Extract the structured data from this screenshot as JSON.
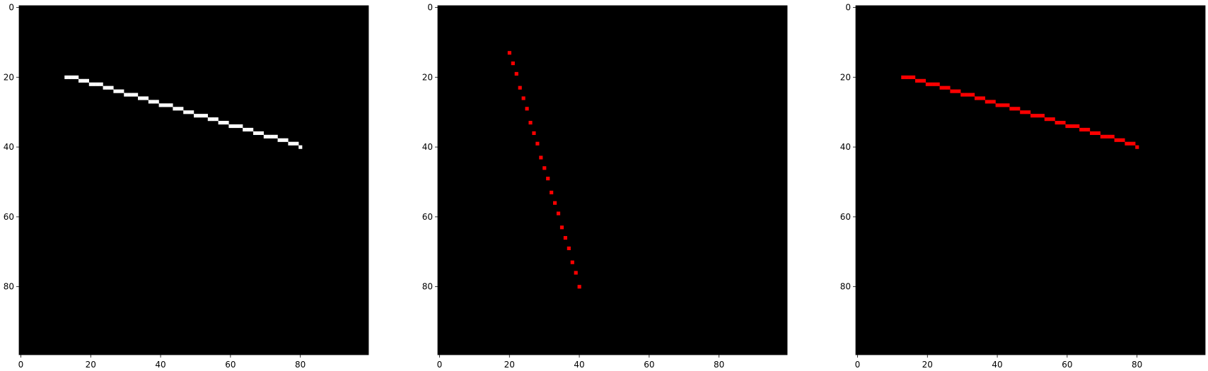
{
  "chart_data": [
    {
      "type": "heatmap",
      "image_size": 100,
      "background": "#000000",
      "color": "#ffffff",
      "xticks": [
        0,
        20,
        40,
        60,
        80
      ],
      "yticks": [
        0,
        20,
        40,
        60,
        80
      ],
      "xlim": [
        0,
        99
      ],
      "ylim": [
        99,
        0
      ],
      "pixels": [
        [
          13,
          20
        ],
        [
          14,
          20
        ],
        [
          15,
          20
        ],
        [
          16,
          20
        ],
        [
          17,
          21
        ],
        [
          18,
          21
        ],
        [
          19,
          21
        ],
        [
          20,
          22
        ],
        [
          21,
          22
        ],
        [
          22,
          22
        ],
        [
          23,
          22
        ],
        [
          24,
          23
        ],
        [
          25,
          23
        ],
        [
          26,
          23
        ],
        [
          27,
          24
        ],
        [
          28,
          24
        ],
        [
          29,
          24
        ],
        [
          30,
          25
        ],
        [
          31,
          25
        ],
        [
          32,
          25
        ],
        [
          33,
          25
        ],
        [
          34,
          26
        ],
        [
          35,
          26
        ],
        [
          36,
          26
        ],
        [
          37,
          27
        ],
        [
          38,
          27
        ],
        [
          39,
          27
        ],
        [
          40,
          28
        ],
        [
          41,
          28
        ],
        [
          42,
          28
        ],
        [
          43,
          28
        ],
        [
          44,
          29
        ],
        [
          45,
          29
        ],
        [
          46,
          29
        ],
        [
          47,
          30
        ],
        [
          48,
          30
        ],
        [
          49,
          30
        ],
        [
          50,
          31
        ],
        [
          51,
          31
        ],
        [
          52,
          31
        ],
        [
          53,
          31
        ],
        [
          54,
          32
        ],
        [
          55,
          32
        ],
        [
          56,
          32
        ],
        [
          57,
          33
        ],
        [
          58,
          33
        ],
        [
          59,
          33
        ],
        [
          60,
          34
        ],
        [
          61,
          34
        ],
        [
          62,
          34
        ],
        [
          63,
          34
        ],
        [
          64,
          35
        ],
        [
          65,
          35
        ],
        [
          66,
          35
        ],
        [
          67,
          36
        ],
        [
          68,
          36
        ],
        [
          69,
          36
        ],
        [
          70,
          37
        ],
        [
          71,
          37
        ],
        [
          72,
          37
        ],
        [
          73,
          37
        ],
        [
          74,
          38
        ],
        [
          75,
          38
        ],
        [
          76,
          38
        ],
        [
          77,
          39
        ],
        [
          78,
          39
        ],
        [
          79,
          39
        ],
        [
          80,
          40
        ]
      ]
    },
    {
      "type": "heatmap",
      "image_size": 100,
      "background": "#000000",
      "color": "#ff0000",
      "xticks": [
        0,
        20,
        40,
        60,
        80
      ],
      "yticks": [
        0,
        20,
        40,
        60,
        80
      ],
      "xlim": [
        0,
        99
      ],
      "ylim": [
        99,
        0
      ],
      "pixels": [
        [
          20,
          13
        ],
        [
          21,
          16
        ],
        [
          22,
          19
        ],
        [
          23,
          23
        ],
        [
          24,
          26
        ],
        [
          25,
          29
        ],
        [
          26,
          33
        ],
        [
          27,
          36
        ],
        [
          28,
          39
        ],
        [
          29,
          43
        ],
        [
          30,
          46
        ],
        [
          31,
          49
        ],
        [
          32,
          53
        ],
        [
          33,
          56
        ],
        [
          34,
          59
        ],
        [
          35,
          63
        ],
        [
          36,
          66
        ],
        [
          37,
          69
        ],
        [
          38,
          73
        ],
        [
          39,
          76
        ],
        [
          40,
          80
        ]
      ]
    },
    {
      "type": "heatmap",
      "image_size": 100,
      "background": "#000000",
      "color": "#ff0000",
      "xticks": [
        0,
        20,
        40,
        60,
        80
      ],
      "yticks": [
        0,
        20,
        40,
        60,
        80
      ],
      "xlim": [
        0,
        99
      ],
      "ylim": [
        99,
        0
      ],
      "pixels": [
        [
          13,
          20
        ],
        [
          14,
          20
        ],
        [
          15,
          20
        ],
        [
          16,
          20
        ],
        [
          17,
          21
        ],
        [
          18,
          21
        ],
        [
          19,
          21
        ],
        [
          20,
          22
        ],
        [
          21,
          22
        ],
        [
          22,
          22
        ],
        [
          23,
          22
        ],
        [
          24,
          23
        ],
        [
          25,
          23
        ],
        [
          26,
          23
        ],
        [
          27,
          24
        ],
        [
          28,
          24
        ],
        [
          29,
          24
        ],
        [
          30,
          25
        ],
        [
          31,
          25
        ],
        [
          32,
          25
        ],
        [
          33,
          25
        ],
        [
          34,
          26
        ],
        [
          35,
          26
        ],
        [
          36,
          26
        ],
        [
          37,
          27
        ],
        [
          38,
          27
        ],
        [
          39,
          27
        ],
        [
          40,
          28
        ],
        [
          41,
          28
        ],
        [
          42,
          28
        ],
        [
          43,
          28
        ],
        [
          44,
          29
        ],
        [
          45,
          29
        ],
        [
          46,
          29
        ],
        [
          47,
          30
        ],
        [
          48,
          30
        ],
        [
          49,
          30
        ],
        [
          50,
          31
        ],
        [
          51,
          31
        ],
        [
          52,
          31
        ],
        [
          53,
          31
        ],
        [
          54,
          32
        ],
        [
          55,
          32
        ],
        [
          56,
          32
        ],
        [
          57,
          33
        ],
        [
          58,
          33
        ],
        [
          59,
          33
        ],
        [
          60,
          34
        ],
        [
          61,
          34
        ],
        [
          62,
          34
        ],
        [
          63,
          34
        ],
        [
          64,
          35
        ],
        [
          65,
          35
        ],
        [
          66,
          35
        ],
        [
          67,
          36
        ],
        [
          68,
          36
        ],
        [
          69,
          36
        ],
        [
          70,
          37
        ],
        [
          71,
          37
        ],
        [
          72,
          37
        ],
        [
          73,
          37
        ],
        [
          74,
          38
        ],
        [
          75,
          38
        ],
        [
          76,
          38
        ],
        [
          77,
          39
        ],
        [
          78,
          39
        ],
        [
          79,
          39
        ],
        [
          80,
          40
        ]
      ]
    }
  ]
}
